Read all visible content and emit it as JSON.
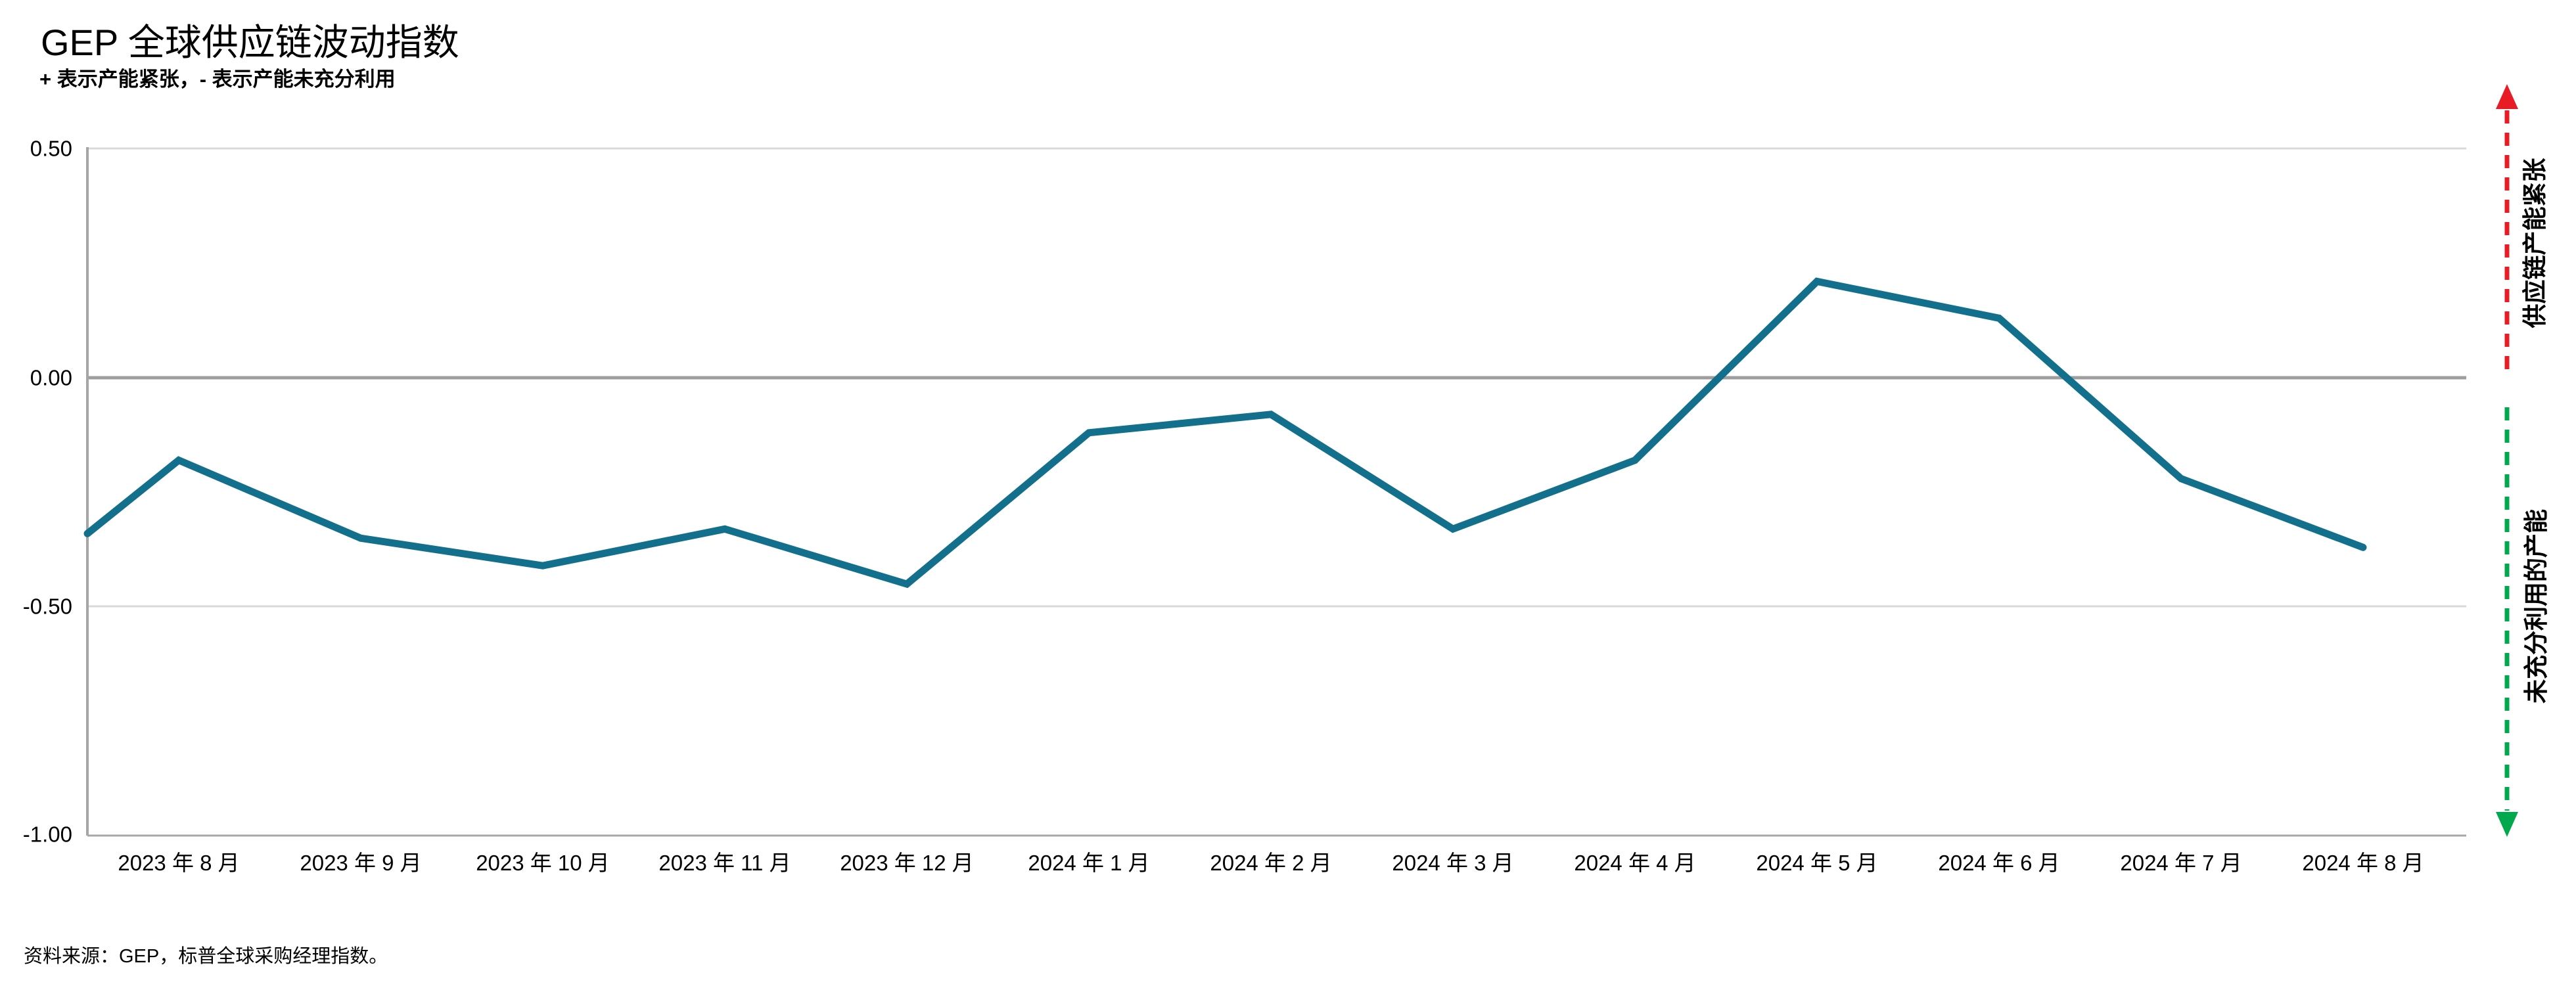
{
  "header": {
    "title": "GEP 全球供应链波动指数",
    "subtitle": "+ 表示产能紧张，- 表示产能未充分利用"
  },
  "footer": {
    "source_note": "资料来源：GEP，标普全球采购经理指数。"
  },
  "annotations": {
    "upper_arrow_label": "供应链产能紧张",
    "lower_arrow_label": "未充分利用的产能",
    "upper_arrow_direction": "up",
    "lower_arrow_direction": "down"
  },
  "colors": {
    "line": "#13708d",
    "tight_capacity_red": "#e81c24",
    "underutilized_green": "#00a94e",
    "axis_gray": "#a6a6a6",
    "zero_line_gray": "#9e9e9e",
    "gridline_light": "#d9d9d9"
  },
  "chart_data": {
    "type": "line",
    "title": "GEP 全球供应链波动指数",
    "subtitle": "+ 表示产能紧张，- 表示产能未充分利用",
    "categories": [
      "2023 年 8 月",
      "2023 年 9 月",
      "2023 年 10 月",
      "2023 年 11 月",
      "2023 年 12 月",
      "2024 年 1 月",
      "2024 年 2 月",
      "2024 年 3 月",
      "2024 年 4 月",
      "2024 年 5 月",
      "2024 年 6 月",
      "2024 年 7 月",
      "2024 年 8 月"
    ],
    "values": [
      -0.18,
      -0.35,
      -0.41,
      -0.33,
      -0.45,
      -0.12,
      -0.08,
      -0.33,
      -0.18,
      0.21,
      0.13,
      -0.22,
      -0.37
    ],
    "left_edge_clip_value": -0.34,
    "series_name": "GEP 全球供应链波动指数",
    "xlabel": "",
    "ylabel": "",
    "ylim": [
      -1.0,
      0.5
    ],
    "y_axis": {
      "ticks": [
        {
          "label": "0.50",
          "value": 0.5
        },
        {
          "label": "0.00",
          "value": 0.0
        },
        {
          "label": "-0.50",
          "value": -0.5
        },
        {
          "label": "-1.00",
          "value": -1.0
        }
      ]
    },
    "grid": "horizontal",
    "legend": "none"
  }
}
